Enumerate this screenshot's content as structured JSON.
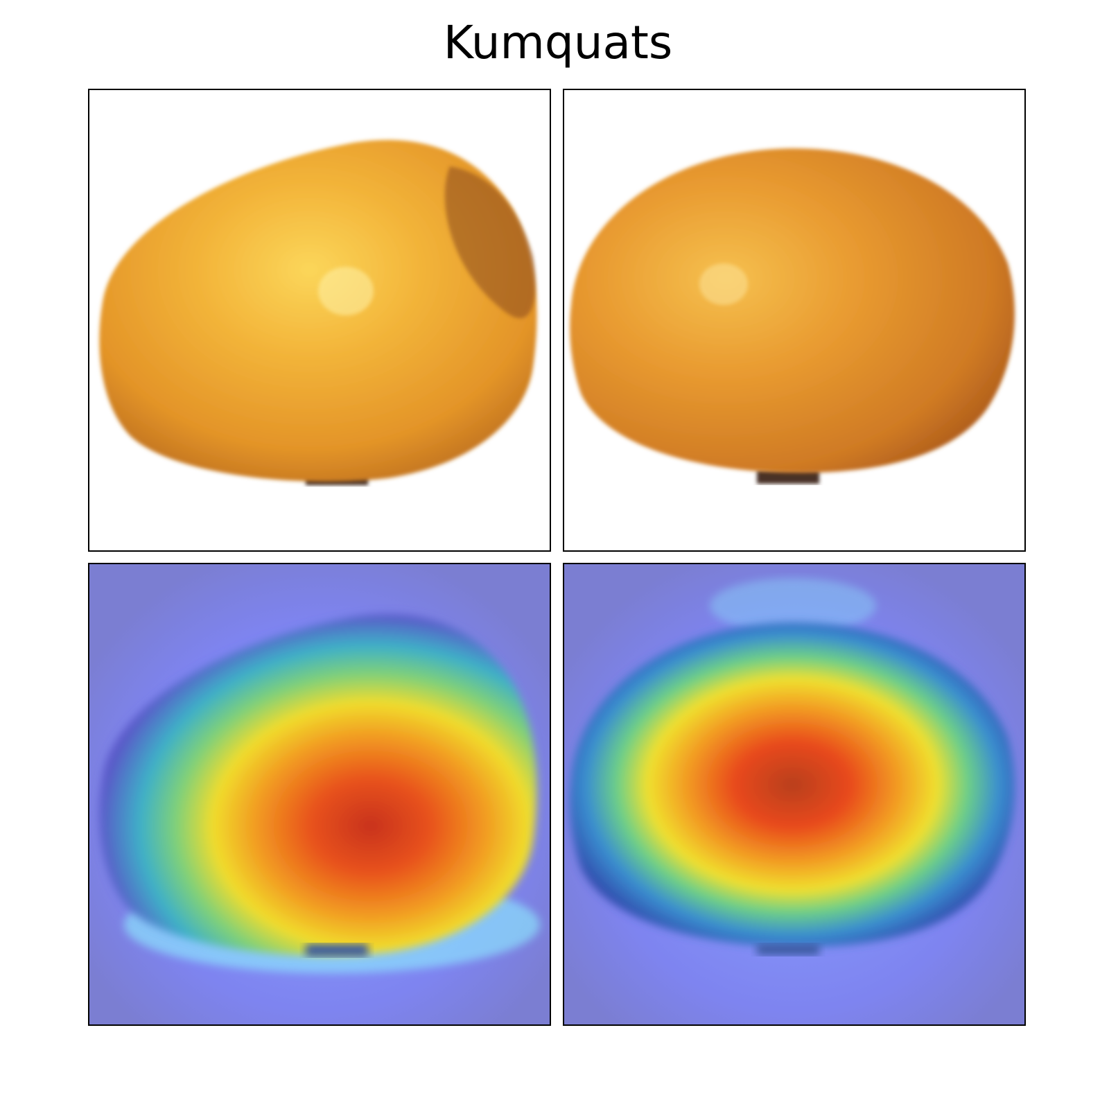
{
  "figure": {
    "title": "Kumquats"
  },
  "panels": [
    {
      "id": "original-1",
      "kind": "photo",
      "subject": "kumquat"
    },
    {
      "id": "original-2",
      "kind": "photo",
      "subject": "kumquat"
    },
    {
      "id": "heatmap-1",
      "kind": "attention-heatmap-overlay",
      "subject": "kumquat"
    },
    {
      "id": "heatmap-2",
      "kind": "attention-heatmap-overlay",
      "subject": "kumquat"
    }
  ],
  "colors": {
    "fruit_light": "#f7c43a",
    "fruit_mid": "#eea12a",
    "fruit_dark": "#b8621c",
    "heatmap_background": "#7d80d8",
    "heatmap_hot": "#e8421a",
    "heatmap_warm": "#f4d42c",
    "heatmap_cool": "#38c8c8"
  }
}
